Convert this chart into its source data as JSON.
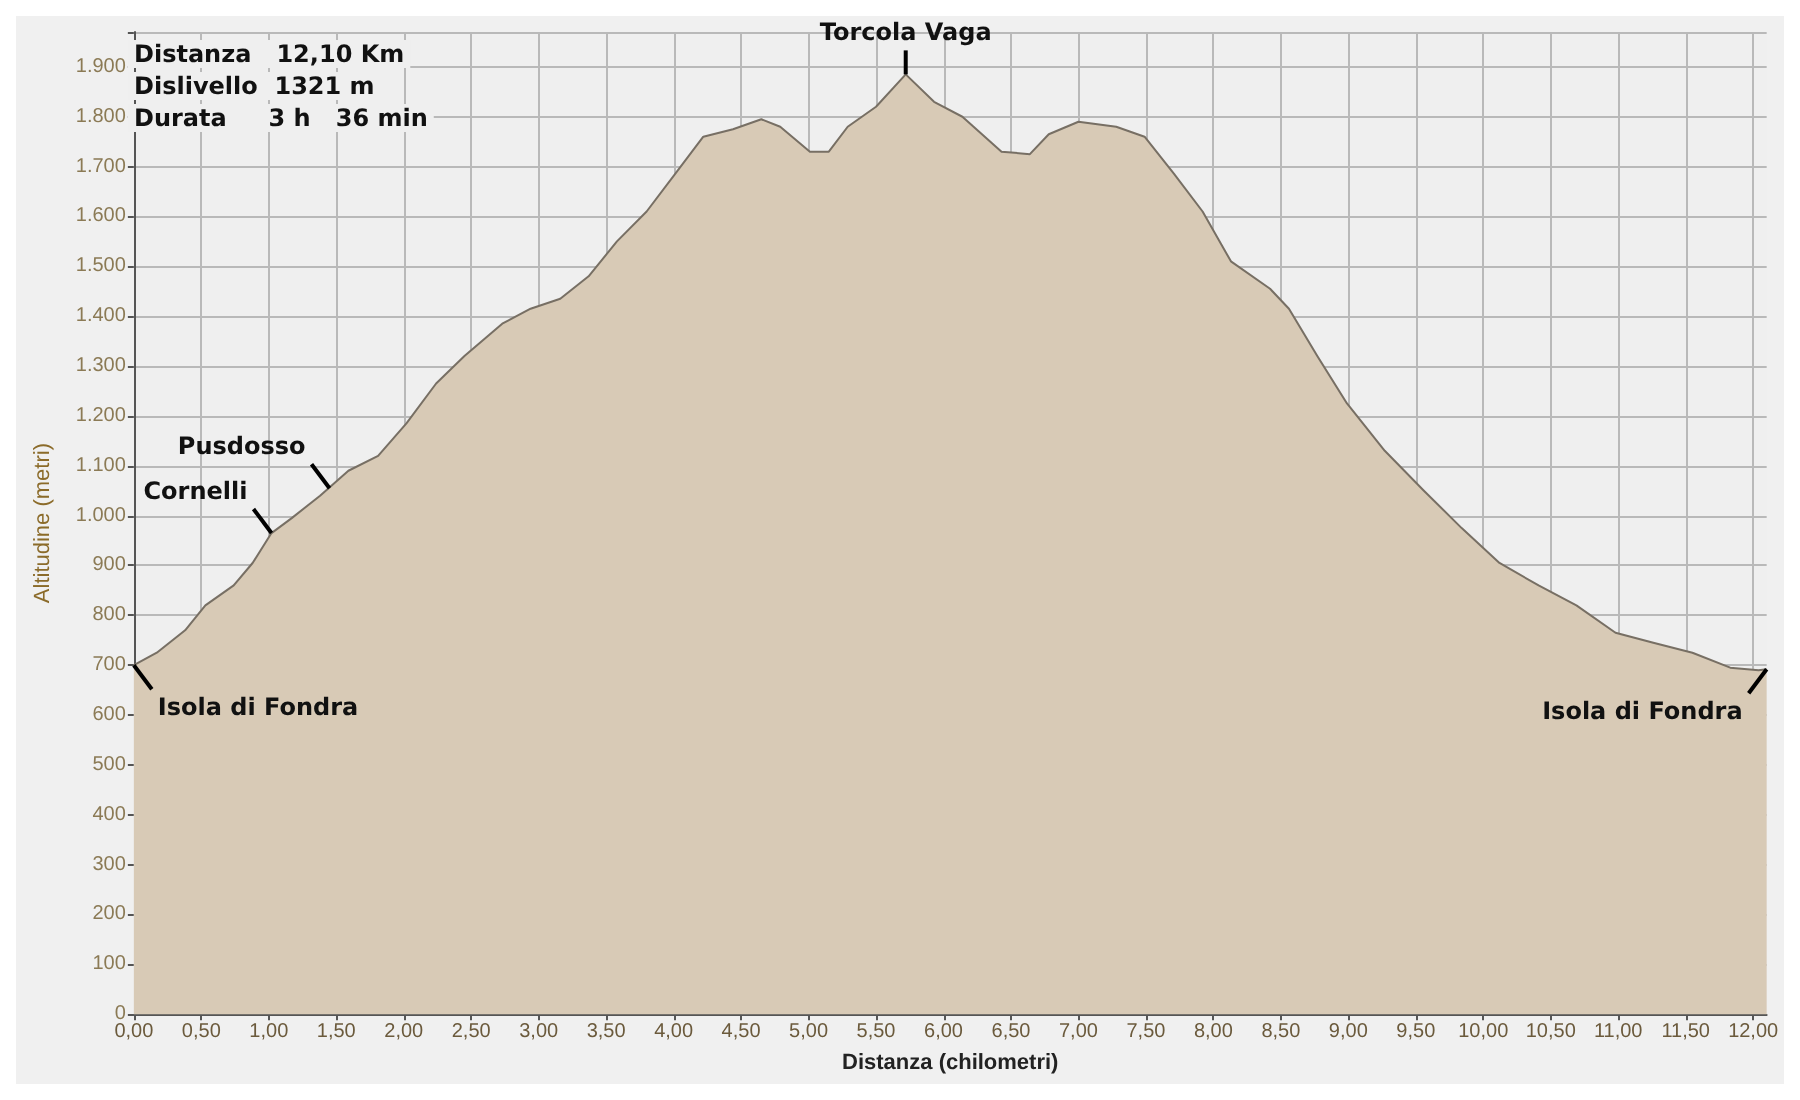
{
  "chart_data": {
    "type": "area",
    "xlabel": "Distanza (chilometri)",
    "ylabel": "Altitudine (metri)",
    "color": "#d8cab6",
    "x": [
      0,
      0.17,
      0.38,
      0.53,
      0.74,
      0.88,
      1.02,
      1.17,
      1.38,
      1.59,
      1.81,
      2.02,
      2.24,
      2.45,
      2.73,
      2.94,
      3.16,
      3.37,
      3.58,
      3.8,
      4.01,
      4.22,
      4.44,
      4.65,
      4.79,
      5.01,
      5.15,
      5.29,
      5.5,
      5.72,
      5.93,
      6.14,
      6.43,
      6.64,
      6.78,
      7,
      7.28,
      7.49,
      7.71,
      7.92,
      8.13,
      8.42,
      8.56,
      8.77,
      8.99,
      9.27,
      9.56,
      9.84,
      10.12,
      10.41,
      10.69,
      10.98,
      11.26,
      11.55,
      11.83,
      12.04,
      12.1
    ],
    "values": [
      700,
      725,
      770,
      820,
      860,
      905,
      965,
      995,
      1040,
      1090,
      1120,
      1185,
      1265,
      1320,
      1385,
      1415,
      1435,
      1480,
      1550,
      1610,
      1685,
      1760,
      1775,
      1795,
      1780,
      1730,
      1730,
      1780,
      1820,
      1885,
      1830,
      1800,
      1730,
      1725,
      1765,
      1790,
      1780,
      1760,
      1685,
      1610,
      1510,
      1455,
      1415,
      1320,
      1225,
      1130,
      1050,
      975,
      905,
      860,
      820,
      765,
      745,
      725,
      695,
      690,
      692
    ],
    "xlim": [
      0,
      12.1
    ],
    "ylim": [
      0,
      1970
    ],
    "xticks": [
      {
        "value": 0,
        "label": "0,00"
      },
      {
        "value": 0.5,
        "label": "0,50"
      },
      {
        "value": 1,
        "label": "1,00"
      },
      {
        "value": 1.5,
        "label": "1,50"
      },
      {
        "value": 2,
        "label": "2,00"
      },
      {
        "value": 2.5,
        "label": "2,50"
      },
      {
        "value": 3,
        "label": "3,00"
      },
      {
        "value": 3.5,
        "label": "3,50"
      },
      {
        "value": 4,
        "label": "4,00"
      },
      {
        "value": 4.5,
        "label": "4,50"
      },
      {
        "value": 5,
        "label": "5,00"
      },
      {
        "value": 5.5,
        "label": "5,50"
      },
      {
        "value": 6,
        "label": "6,00"
      },
      {
        "value": 6.5,
        "label": "6,50"
      },
      {
        "value": 7,
        "label": "7,00"
      },
      {
        "value": 7.5,
        "label": "7,50"
      },
      {
        "value": 8,
        "label": "8,00"
      },
      {
        "value": 8.5,
        "label": "8,50"
      },
      {
        "value": 9,
        "label": "9,00"
      },
      {
        "value": 9.5,
        "label": "9,50"
      },
      {
        "value": 10,
        "label": "10,00"
      },
      {
        "value": 10.5,
        "label": "10,50"
      },
      {
        "value": 11,
        "label": "11,00"
      },
      {
        "value": 11.5,
        "label": "11,50"
      },
      {
        "value": 12,
        "label": "12,00"
      }
    ],
    "yticks": [
      0,
      100,
      200,
      300,
      400,
      500,
      600,
      700,
      800,
      900,
      {
        "value": 1000,
        "label": "1.000"
      },
      {
        "value": 1100,
        "label": "1.100"
      },
      {
        "value": 1200,
        "label": "1.200"
      },
      {
        "value": 1300,
        "label": "1.300"
      },
      {
        "value": 1400,
        "label": "1.400"
      },
      {
        "value": 1500,
        "label": "1.500"
      },
      {
        "value": 1600,
        "label": "1.600"
      },
      {
        "value": 1700,
        "label": "1.700"
      },
      {
        "value": 1800,
        "label": "1.800"
      },
      {
        "value": 1900,
        "label": "1.900"
      }
    ],
    "grid": true,
    "annotations": [
      "Distanza   12,10 Km",
      "Dislivello  1321 m",
      "Durata     3 h   36 min",
      {
        "text": "Torcola Vaga",
        "x": 5.72,
        "y": 1885
      },
      {
        "text": "Pusdosso",
        "x": 1.45,
        "y": 1055
      },
      {
        "text": "Cornelli",
        "x": 1.02,
        "y": 965
      },
      {
        "text": "Isola di Fondra",
        "x": 0,
        "y": 700
      },
      {
        "text": "Isola di Fondra",
        "x": 12.1,
        "y": 692
      }
    ]
  }
}
